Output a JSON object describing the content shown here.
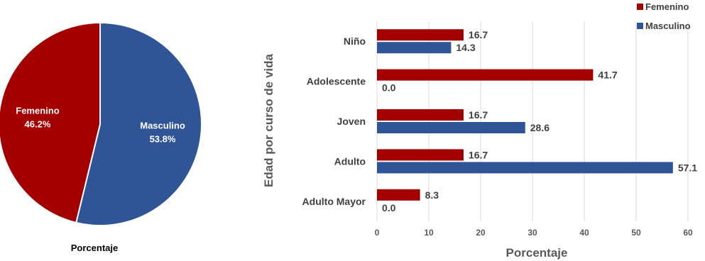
{
  "chart_data": [
    {
      "type": "pie",
      "title": "Porcentaje",
      "slices": [
        {
          "label": "Masculino",
          "value": 53.8,
          "display": "53.8%",
          "color": "#2f5597"
        },
        {
          "label": "Femenino",
          "value": 46.2,
          "display": "46.2%",
          "color": "#a50000"
        }
      ]
    },
    {
      "type": "bar",
      "orientation": "horizontal",
      "categories": [
        "Niño",
        "Adolescente",
        "Joven",
        "Adulto",
        "Adulto Mayor"
      ],
      "series": [
        {
          "name": "Femenino",
          "color": "#a50000",
          "values": [
            16.7,
            41.7,
            16.7,
            16.7,
            8.3
          ]
        },
        {
          "name": "Masculino",
          "color": "#2f5597",
          "values": [
            14.3,
            0.0,
            28.6,
            57.1,
            0.0
          ]
        }
      ],
      "xlabel": "Porcentaje",
      "ylabel": "Edad por curso de vida",
      "xlim": [
        0,
        60
      ],
      "xticks": [
        0,
        10,
        20,
        30,
        40,
        50,
        60
      ],
      "grid": true,
      "legend": "top-right"
    }
  ]
}
